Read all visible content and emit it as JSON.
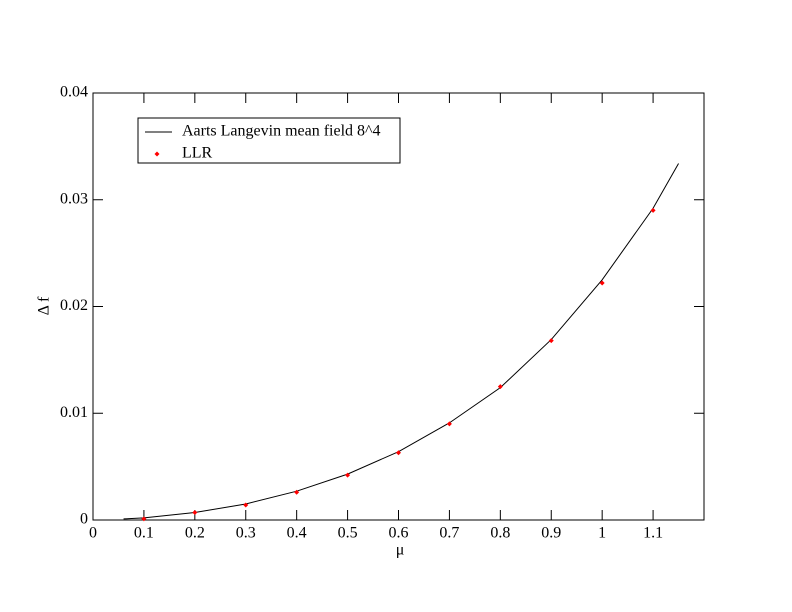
{
  "chart_data": {
    "type": "line",
    "xlabel": "μ",
    "ylabel": "Δ f",
    "xlim": [
      0,
      1.2
    ],
    "xticks": [
      0,
      0.1,
      0.2,
      0.3,
      0.4,
      0.5,
      0.6,
      0.7,
      0.8,
      0.9,
      1,
      1.1
    ],
    "ylim": [
      0,
      0.04
    ],
    "yticks": [
      0,
      0.01,
      0.02,
      0.03,
      0.04
    ],
    "legend": "upper left",
    "series": [
      {
        "name": "Aarts Langevin mean field 8^4",
        "color": "#000000",
        "style": "line",
        "x": [
          0.06,
          0.1,
          0.2,
          0.3,
          0.4,
          0.5,
          0.6,
          0.7,
          0.8,
          0.9,
          1,
          1.1,
          1.15
        ],
        "values": [
          0.0001,
          0.0002,
          0.0007,
          0.0015,
          0.0027,
          0.0043,
          0.0064,
          0.0091,
          0.0124,
          0.0169,
          0.0225,
          0.0292,
          0.0334
        ]
      },
      {
        "name": "LLR",
        "color": "#ff0000",
        "style": "marker",
        "x": [
          0.1,
          0.2,
          0.3,
          0.4,
          0.5,
          0.6,
          0.7,
          0.8,
          0.9,
          1,
          1.1
        ],
        "values": [
          0.0001,
          0.0007,
          0.0014,
          0.0026,
          0.0042,
          0.0063,
          0.009,
          0.0125,
          0.0168,
          0.0222,
          0.029
        ]
      }
    ]
  }
}
